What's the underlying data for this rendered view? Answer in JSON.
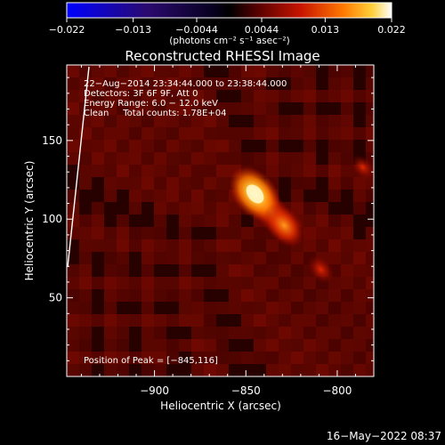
{
  "chart_data": {
    "type": "heatmap",
    "title": "Reconstructed RHESSI Image",
    "xlabel": "Heliocentric X (arcsec)",
    "ylabel": "Heliocentric Y (arcsec)",
    "xlim": [
      -948,
      -780
    ],
    "ylim": [
      0,
      198
    ],
    "xticks": [
      -900,
      -850,
      -800
    ],
    "yticks": [
      50,
      100,
      150
    ],
    "xtick_labels": [
      "−900",
      "−850",
      "−800"
    ],
    "ytick_labels": [
      "50",
      "100",
      "150"
    ],
    "colorbar": {
      "range": [
        -0.022,
        0.022
      ],
      "ticks": [
        -0.022,
        -0.013,
        -0.0044,
        0.0044,
        0.013,
        0.022
      ],
      "tick_labels": [
        "−0.022",
        "−0.013",
        "−0.0044",
        "0.0044",
        "0.013",
        "0.022"
      ],
      "unit_label": "(photons cm⁻² s⁻¹ asec⁻²)"
    },
    "annotations": [
      "22−Aug−2014 23:34:44.000 to 23:38:44.000",
      "Detectors: 3F 6F 9F, Att 0",
      "Energy Range: 6.0 − 12.0 keV",
      "Clean     Total counts: 1.78E+04"
    ],
    "peak_label": "Position of Peak = [−845,116]",
    "sources": [
      {
        "x": -845,
        "y": 116,
        "amplitude": 0.022
      },
      {
        "x": -829,
        "y": 96,
        "amplitude": 0.016
      },
      {
        "x": -809,
        "y": 68,
        "amplitude": 0.008
      },
      {
        "x": -786,
        "y": 133,
        "amplitude": 0.006
      }
    ]
  },
  "footer": {
    "timestamp": "16−May−2022 08:37"
  }
}
